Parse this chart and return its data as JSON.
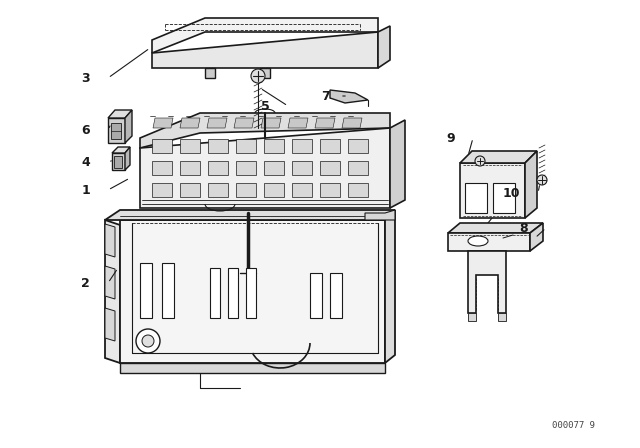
{
  "background_color": "#ffffff",
  "watermark": "000077 9",
  "line_color": "#1a1a1a",
  "fig_width": 6.4,
  "fig_height": 4.48,
  "dpi": 100
}
